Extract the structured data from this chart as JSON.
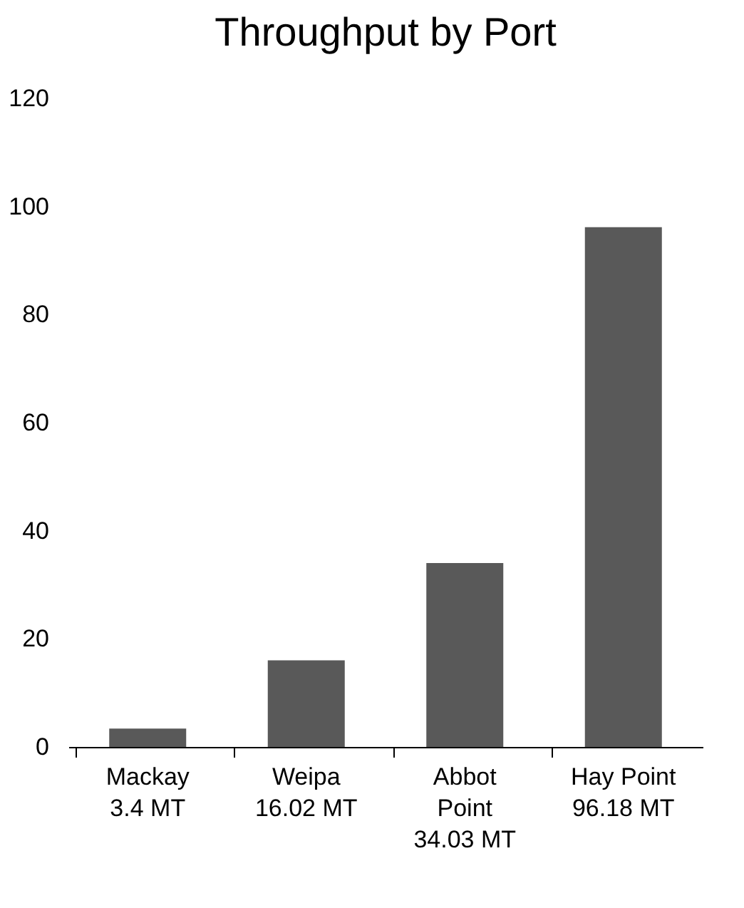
{
  "chart_data": {
    "type": "bar",
    "title": "Throughput by Port",
    "categories": [
      "Mackay\n3.4 MT",
      "Weipa\n16.02 MT",
      "Abbot\nPoint\n34.03 MT",
      "Hay Point\n96.18 MT"
    ],
    "values": [
      3.4,
      16.02,
      34.03,
      96.18
    ],
    "color": "#595959",
    "ylim": [
      0,
      120
    ],
    "yticks": [
      0,
      20,
      40,
      60,
      80,
      100,
      120
    ],
    "grid": false
  }
}
